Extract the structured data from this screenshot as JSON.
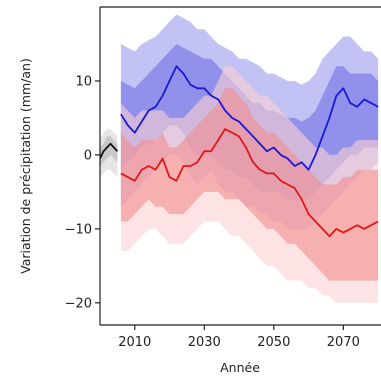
{
  "chart_data": {
    "type": "line",
    "title": "",
    "xlabel": "Année",
    "ylabel": "Variation de précipitation (mm/an)",
    "xlim": [
      2000,
      2080
    ],
    "ylim": [
      -23,
      20
    ],
    "xticks": [
      2010,
      2030,
      2050,
      2070
    ],
    "yticks": [
      -20,
      -10,
      0,
      10
    ],
    "grid": false,
    "legend": "none",
    "series": [
      {
        "color": "#1a1ad6",
        "band_outer_color": "#9a9aee",
        "band_inner_color": "#6f6fe6",
        "x": [
          2006,
          2008,
          2010,
          2012,
          2014,
          2016,
          2018,
          2020,
          2022,
          2024,
          2026,
          2028,
          2030,
          2032,
          2034,
          2036,
          2038,
          2040,
          2042,
          2044,
          2046,
          2048,
          2050,
          2052,
          2054,
          2056,
          2058,
          2060,
          2062,
          2064,
          2066,
          2068,
          2070,
          2072,
          2074,
          2076,
          2078,
          2080
        ],
        "values": [
          5.5,
          4.0,
          3.0,
          4.5,
          6.0,
          6.5,
          8.0,
          10.0,
          12.0,
          11.0,
          9.5,
          9.0,
          9.0,
          8.0,
          7.5,
          6.0,
          5.0,
          4.5,
          3.5,
          2.5,
          1.5,
          0.5,
          1.0,
          0.0,
          -0.5,
          -1.5,
          -1.0,
          -2.0,
          0.0,
          2.5,
          5.0,
          8.0,
          9.0,
          7.0,
          6.5,
          7.5,
          7.0,
          6.5
        ],
        "band_outer_low": [
          -7,
          -6,
          -5,
          -4,
          -3,
          -2,
          -1,
          0,
          0,
          -1,
          -3,
          -4,
          -3,
          -2,
          -4,
          -5,
          -5,
          -6,
          -7,
          -7,
          -8,
          -8,
          -9,
          -9,
          -10,
          -10,
          -10,
          -10,
          -9,
          -8,
          -7,
          -6,
          -5,
          -4,
          -3,
          -2,
          -2,
          -1
        ],
        "band_outer_high": [
          15,
          14.5,
          14,
          15,
          15.5,
          16,
          17,
          18,
          19,
          18.5,
          18,
          17,
          17,
          16,
          15,
          14.5,
          14,
          13,
          13,
          12.5,
          12,
          11,
          11,
          10.5,
          10,
          10,
          9.5,
          10,
          11,
          13,
          14,
          15,
          16,
          16,
          15,
          14,
          14,
          13
        ],
        "band_inner_low": [
          -2,
          -1,
          0,
          1,
          1.5,
          2,
          3,
          4,
          4,
          3,
          1,
          0,
          0,
          0,
          -1,
          -2,
          -2,
          -3,
          -3,
          -4,
          -5,
          -5,
          -5,
          -5,
          -6,
          -6,
          -6,
          -6,
          -5,
          -4,
          -3,
          -2,
          -1,
          0,
          0,
          1,
          1,
          1
        ],
        "band_inner_high": [
          10,
          9.5,
          9,
          10,
          11,
          12,
          13,
          14,
          15,
          14.5,
          14,
          13.5,
          13,
          13,
          12,
          11,
          10,
          9,
          8,
          7,
          7,
          6,
          6,
          5.5,
          5,
          5,
          4.5,
          5,
          6,
          8,
          10,
          12,
          12,
          11,
          11,
          11,
          11,
          10
        ]
      },
      {
        "color": "#e01818",
        "band_outer_color": "#fbd0d0",
        "band_inner_color": "#f28e8e",
        "x": [
          2006,
          2008,
          2010,
          2012,
          2014,
          2016,
          2018,
          2020,
          2022,
          2024,
          2026,
          2028,
          2030,
          2032,
          2034,
          2036,
          2038,
          2040,
          2042,
          2044,
          2046,
          2048,
          2050,
          2052,
          2054,
          2056,
          2058,
          2060,
          2062,
          2064,
          2066,
          2068,
          2070,
          2072,
          2074,
          2076,
          2078,
          2080
        ],
        "values": [
          -2.5,
          -3.0,
          -3.5,
          -2.0,
          -1.5,
          -2.0,
          -0.5,
          -3.0,
          -3.5,
          -1.5,
          -1.5,
          -1.0,
          0.5,
          0.5,
          2.0,
          3.5,
          3.0,
          2.5,
          1.0,
          -1.0,
          -2.0,
          -2.5,
          -2.5,
          -3.5,
          -4.0,
          -4.5,
          -6.0,
          -8.0,
          -9.0,
          -10.0,
          -11.0,
          -10.0,
          -10.5,
          -10.0,
          -9.5,
          -10.0,
          -9.5,
          -9.0
        ],
        "band_outer_low": [
          -13,
          -13,
          -12,
          -11,
          -10,
          -10,
          -11,
          -12,
          -12,
          -12,
          -11,
          -10,
          -9,
          -9,
          -9,
          -10,
          -11,
          -11,
          -12,
          -13,
          -14,
          -15,
          -15,
          -16,
          -17,
          -17,
          -17,
          -18,
          -18,
          -19,
          -19,
          -20,
          -20,
          -20,
          -20,
          -20,
          -20,
          -20
        ],
        "band_outer_high": [
          7,
          6,
          5,
          6,
          6,
          6,
          6,
          5,
          5,
          5,
          6,
          7,
          8,
          8,
          10,
          12,
          12,
          11,
          10,
          9,
          8,
          8,
          7,
          6,
          5,
          4,
          3,
          2,
          1,
          1,
          0,
          0,
          1,
          1,
          2,
          2,
          2,
          2
        ],
        "band_inner_low": [
          -9,
          -9,
          -8,
          -7,
          -6,
          -7,
          -7,
          -8,
          -8,
          -8,
          -7,
          -6,
          -5,
          -5,
          -5,
          -6,
          -6,
          -6,
          -7,
          -8,
          -9,
          -10,
          -10,
          -11,
          -12,
          -12,
          -13,
          -14,
          -15,
          -16,
          -17,
          -17,
          -17,
          -17,
          -17,
          -17,
          -17,
          -17
        ],
        "band_inner_high": [
          3,
          2,
          1,
          2,
          2,
          2,
          3,
          1,
          1,
          2,
          3,
          4,
          5,
          6,
          7,
          9,
          9,
          8,
          7,
          5,
          4,
          3,
          3,
          2,
          1,
          0,
          -1,
          -2,
          -3,
          -4,
          -4,
          -4,
          -3,
          -3,
          -2,
          -2,
          -2,
          -2
        ]
      },
      {
        "color": "#111111",
        "band_outer_color": "#d6d6d6",
        "band_inner_color": "#b4b4b4",
        "x": [
          2000,
          2001,
          2002,
          2003,
          2004,
          2005
        ],
        "values": [
          -0.5,
          0.5,
          1.0,
          1.5,
          1.0,
          0.5
        ],
        "band_outer_low": [
          -3,
          -2.5,
          -2,
          -2,
          -2.5,
          -3
        ],
        "band_outer_high": [
          2,
          3,
          3.5,
          3.5,
          3,
          2.5
        ],
        "band_inner_low": [
          -1.5,
          -1,
          -0.5,
          0,
          -0.5,
          -1
        ],
        "band_inner_high": [
          1,
          1.5,
          2.5,
          2.5,
          2,
          1.5
        ]
      }
    ]
  }
}
